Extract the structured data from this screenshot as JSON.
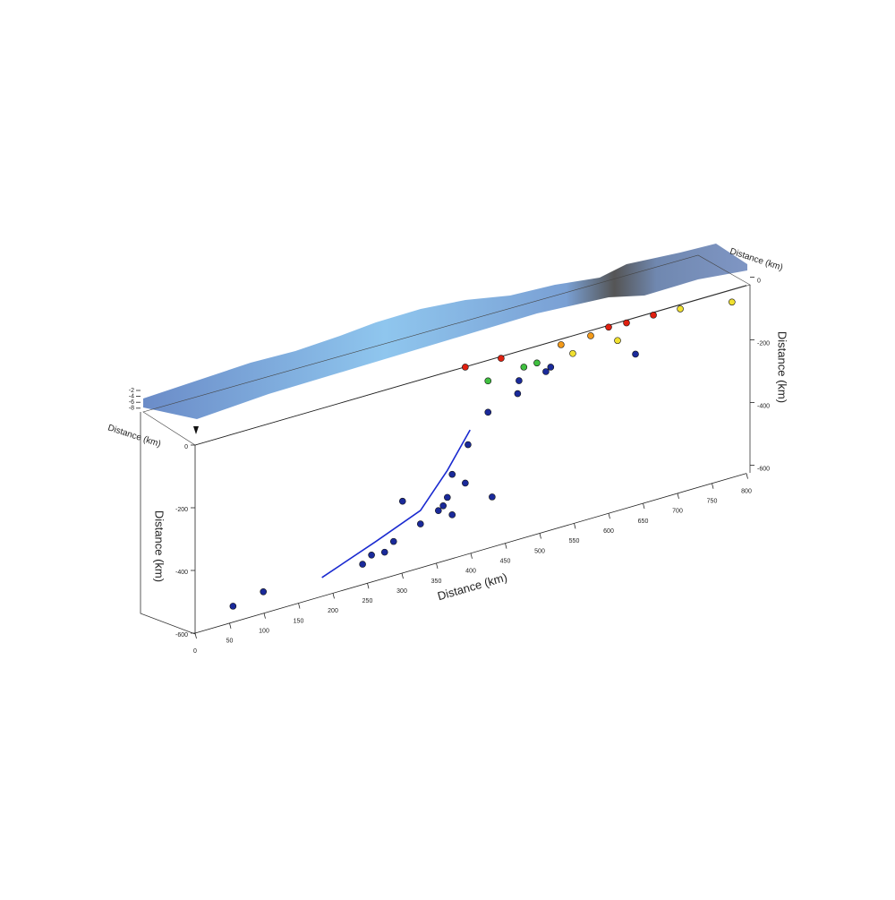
{
  "chart_data": {
    "type": "scatter",
    "xlabel": "Distance (km)",
    "ylabel": "Distance (km)",
    "y2label": "Distance (km)",
    "back_left_label": "Distance (km)",
    "back_right_label": "Distance (km)",
    "xlim": [
      0,
      800
    ],
    "ylim": [
      -600,
      0
    ],
    "xticks": [
      0,
      50,
      100,
      150,
      200,
      250,
      300,
      350,
      400,
      450,
      500,
      550,
      600,
      650,
      700,
      750,
      800
    ],
    "yticks": [
      0,
      -200,
      -400,
      -600
    ],
    "y2ticks": [
      0,
      -200,
      -400,
      -600
    ],
    "zticks": [
      -2,
      -4,
      -6,
      -8
    ],
    "series": [
      {
        "color": "#1a2a9a",
        "x": [
          55,
          99,
          243,
          353,
          366,
          327,
          275,
          392,
          373,
          431,
          396,
          425,
          468,
          470,
          509,
          639,
          516,
          301,
          256,
          288,
          373,
          360
        ],
        "values": [
          -549,
          -531,
          -535,
          -434,
          -400,
          -460,
          -517,
          -371,
          -331,
          -440,
          -251,
          -166,
          -134,
          -94,
          -90,
          -117,
          -80,
          -371,
          -514,
          -491,
          -460,
          -423
        ]
      },
      {
        "color": "#e02010",
        "x": [
          392,
          444,
          600,
          626,
          665
        ],
        "values": [
          -1,
          -6,
          -6,
          -9,
          -9
        ]
      },
      {
        "color": "#f39a1a",
        "x": [
          531,
          574
        ],
        "values": [
          -18,
          -17
        ]
      },
      {
        "color": "#f0e030",
        "x": [
          548,
          613,
          704,
          779
        ],
        "values": [
          -57,
          -57,
          -14,
          -40
        ]
      },
      {
        "color": "#40c040",
        "x": [
          425,
          496,
          477
        ],
        "values": [
          -66,
          -54,
          -55
        ]
      }
    ],
    "curve": {
      "color": "#1a2ad0",
      "x": [
        184,
        262,
        327,
        366,
        399
      ],
      "values": [
        -540,
        -475,
        -417,
        -314,
        -206
      ]
    }
  }
}
